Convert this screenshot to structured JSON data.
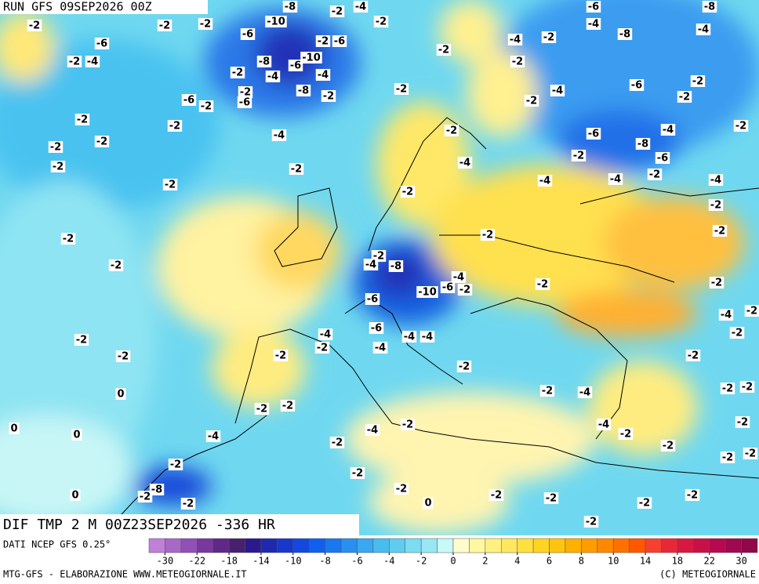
{
  "header": {
    "run": "RUN GFS 09SEP2026 00Z",
    "field": "DIF TMP 2 M 00Z23SEP2026 -336 HR",
    "source": "DATI NCEP GFS 0.25°",
    "credit": "MTG-GFS - ELABORAZIONE WWW.METEOGIORNALE.IT",
    "copyright": "(C) METEOGIORNALE"
  },
  "colorbar": {
    "colors": [
      "#c080d8",
      "#a868c8",
      "#9050b8",
      "#7838a0",
      "#602888",
      "#482070",
      "#2a1a8c",
      "#2028b0",
      "#1838cc",
      "#1448e0",
      "#1060f0",
      "#1878f0",
      "#2890f0",
      "#38a8f0",
      "#48bcf0",
      "#60ccf0",
      "#7cdcf0",
      "#98e8f4",
      "#c8f8f8",
      "#fffccc",
      "#fff8a0",
      "#fff080",
      "#ffe860",
      "#ffe040",
      "#ffd420",
      "#ffc410",
      "#ffb000",
      "#ff9c00",
      "#ff8800",
      "#ff7000",
      "#ff5800",
      "#f84030",
      "#e82838",
      "#d81840",
      "#c81048",
      "#b80850",
      "#a00850",
      "#900848"
    ],
    "ticks": [
      -30,
      -22,
      -18,
      -14,
      -10,
      -8,
      -6,
      -4,
      -2,
      0,
      2,
      4,
      6,
      8,
      10,
      14,
      18,
      22,
      30
    ]
  },
  "contour_labels": [
    "-2",
    "-2",
    "-2",
    "-10",
    "-8",
    "-2",
    "-4",
    "-2",
    "-6",
    "-4",
    "-8",
    "-4",
    "-6",
    "-6",
    "-2",
    "-6",
    "-4",
    "-2",
    "-8",
    "-2",
    "-2",
    "-4",
    "-8",
    "-6",
    "-10",
    "-2",
    "-2",
    "-4",
    "-4",
    "-2",
    "-8",
    "-2",
    "-2",
    "-4",
    "-6",
    "-2",
    "-2",
    "-6",
    "-2",
    "-6",
    "-2",
    "-2",
    "-2",
    "-2",
    "-6",
    "-4",
    "-2",
    "-4",
    "-2",
    "-8",
    "-2",
    "-2",
    "-6",
    "-2",
    "-2",
    "-4",
    "-2",
    "-4",
    "-4",
    "-2",
    "-4",
    "-2",
    "-2",
    "-2",
    "-2",
    "-2",
    "-2",
    "-4",
    "-8",
    "-2",
    "-4",
    "-6",
    "-2",
    "-10",
    "-6",
    "-2",
    "-2",
    "-4",
    "-2",
    "-4",
    "-6",
    "-4",
    "-4",
    "-2",
    "-2",
    "-2",
    "-4",
    "-2",
    "-2",
    "-2",
    "-2",
    "-2",
    "-4",
    "-2",
    "-2",
    "0",
    "-2",
    "-2",
    "-2",
    "-4",
    "-4",
    "0",
    "0",
    "-4",
    "-2",
    "-2",
    "-2",
    "-2",
    "-2",
    "-2",
    "-2",
    "-2",
    "-8",
    "-2",
    "-2",
    "0",
    "-2",
    "-2",
    "-2",
    "-2",
    "0",
    "-2",
    "-2"
  ]
}
